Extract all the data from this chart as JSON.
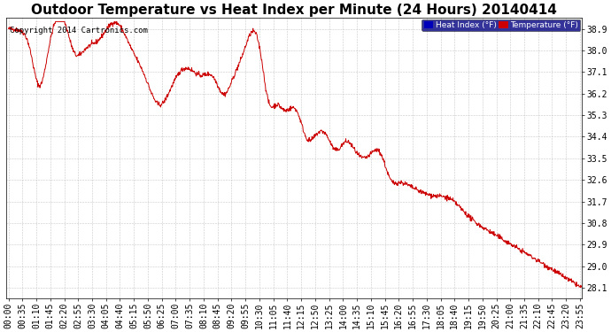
{
  "title": "Outdoor Temperature vs Heat Index per Minute (24 Hours) 20140414",
  "copyright": "Copyright 2014 Cartronics.com",
  "ylabel_ticks": [
    28.1,
    29.0,
    29.9,
    30.8,
    31.7,
    32.6,
    33.5,
    34.4,
    35.3,
    36.2,
    37.1,
    38.0,
    38.9
  ],
  "ylim": [
    27.65,
    39.35
  ],
  "xlabel_interval_minutes": 35,
  "legend_heat_index_label": "Heat Index (°F)",
  "legend_temp_label": "Temperature (°F)",
  "legend_heat_color": "#0000bb",
  "legend_temp_color": "#cc0000",
  "line_color": "#cc0000",
  "grid_color": "#bbbbbb",
  "background_color": "#ffffff",
  "title_fontsize": 11,
  "tick_fontsize": 7,
  "copyright_fontsize": 6.5,
  "fig_width": 6.9,
  "fig_height": 3.75,
  "dpi": 100
}
